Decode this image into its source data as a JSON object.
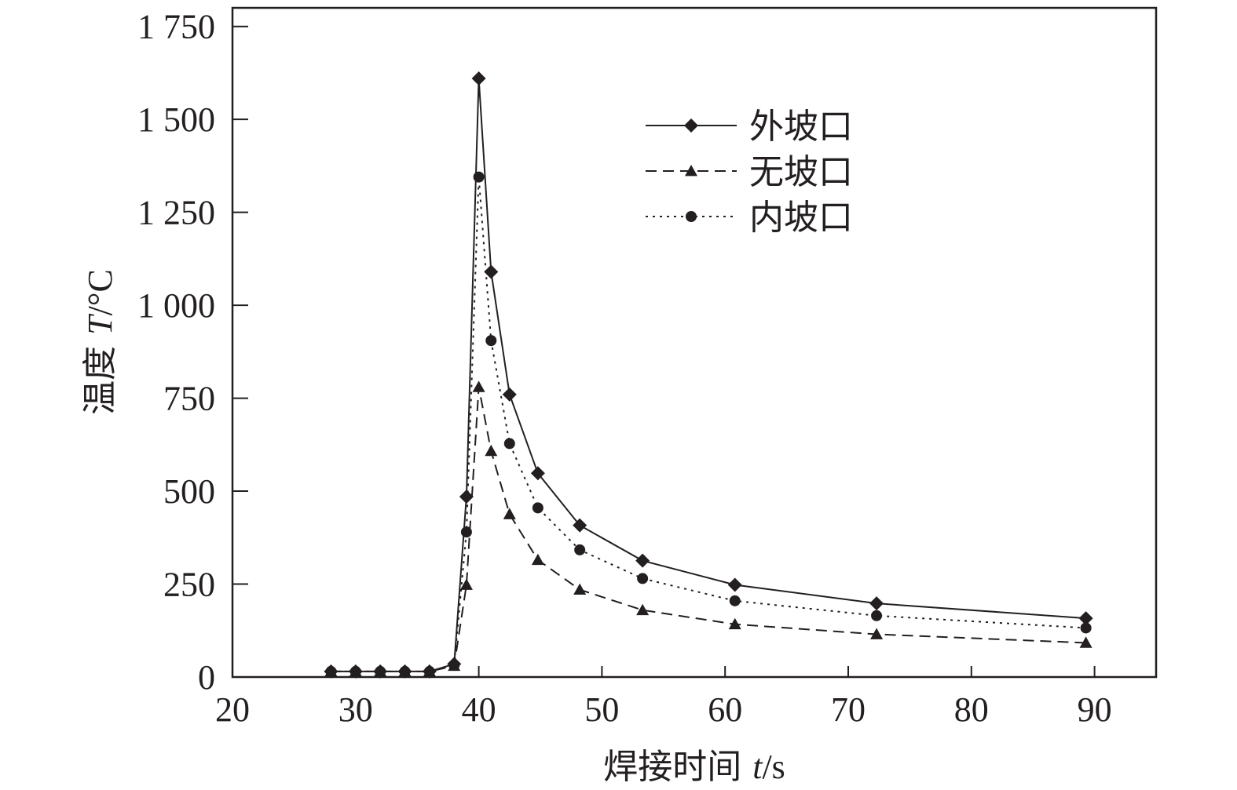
{
  "chart_data": {
    "type": "line",
    "xlabel": {
      "prefix": "焊接时间 ",
      "var": "t",
      "unit": "/s"
    },
    "ylabel": {
      "prefix": "温度 ",
      "var": "T",
      "unit": "/°C"
    },
    "xlim": [
      20,
      95
    ],
    "ylim": [
      0,
      1800
    ],
    "xticks": [
      20,
      30,
      40,
      50,
      60,
      70,
      80,
      90
    ],
    "xtick_labels": [
      "20",
      "30",
      "40",
      "50",
      "60",
      "70",
      "80",
      "90"
    ],
    "yticks": [
      0,
      250,
      500,
      750,
      1000,
      1250,
      1500,
      1750
    ],
    "ytick_labels": [
      "0",
      "250",
      "500",
      "750",
      "1 000",
      "1 250",
      "1 500",
      "1 750"
    ],
    "grid": false,
    "legend_position": "top-right",
    "series": [
      {
        "name": "外坡口",
        "line_style": "solid",
        "marker": "diamond",
        "color": "#231f20",
        "x": [
          28,
          30,
          32,
          34,
          36,
          38,
          39,
          40,
          41,
          42.5,
          44.8,
          48.2,
          53.3,
          60.8,
          72.3,
          89.3
        ],
        "y": [
          15,
          15,
          15,
          15,
          15,
          35,
          485,
          1610,
          1090,
          760,
          548,
          408,
          313,
          248,
          198,
          158
        ]
      },
      {
        "name": "无坡口",
        "line_style": "dashed",
        "marker": "triangle",
        "color": "#231f20",
        "x": [
          28,
          30,
          32,
          34,
          36,
          38,
          39,
          40,
          41,
          42.5,
          44.8,
          48.2,
          53.3,
          60.8,
          72.3,
          89.3
        ],
        "y": [
          15,
          15,
          15,
          15,
          15,
          30,
          248,
          780,
          608,
          438,
          315,
          235,
          180,
          142,
          115,
          92
        ]
      },
      {
        "name": "内坡口",
        "line_style": "dotted",
        "marker": "circle",
        "color": "#231f20",
        "x": [
          28,
          30,
          32,
          34,
          36,
          38,
          39,
          40,
          41,
          42.5,
          44.8,
          48.2,
          53.3,
          60.8,
          72.3,
          89.3
        ],
        "y": [
          15,
          15,
          15,
          15,
          15,
          32,
          390,
          1345,
          905,
          628,
          455,
          342,
          265,
          205,
          165,
          132
        ]
      }
    ]
  }
}
